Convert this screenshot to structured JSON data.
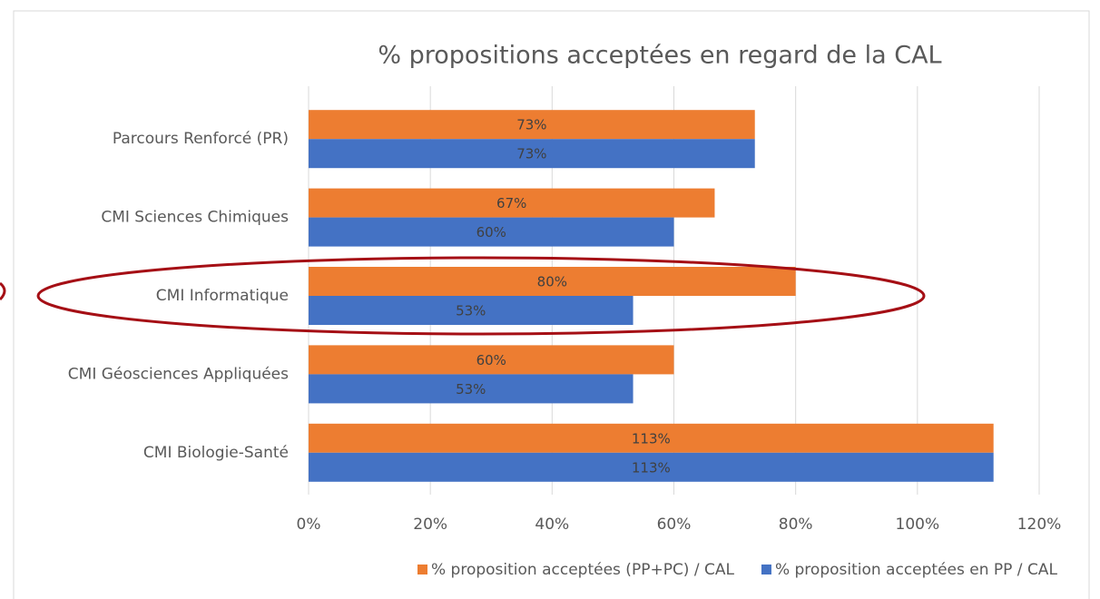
{
  "chart_data": {
    "type": "hbar",
    "title": "% propositions acceptées en regard de la CAL",
    "categories": [
      "Parcours Renforcé (PR)",
      "CMI Sciences Chimiques",
      "CMI Informatique",
      "CMI Géosciences Appliquées",
      "CMI Biologie-Santé"
    ],
    "series": [
      {
        "name": "% proposition acceptées (PP+PC) / CAL",
        "color": "#ed7d31",
        "values": [
          73.3,
          66.7,
          80,
          60,
          112.5
        ],
        "value_labels": [
          "73%",
          "67%",
          "80%",
          "60%",
          "113%"
        ]
      },
      {
        "name": "% proposition acceptées en PP / CAL",
        "color": "#4472c4",
        "values": [
          73.3,
          60,
          53.3,
          53.3,
          112.5
        ],
        "value_labels": [
          "73%",
          "60%",
          "53%",
          "53%",
          "113%"
        ]
      }
    ],
    "xlim": [
      0,
      120
    ],
    "xticks": [
      {
        "value": 0,
        "label": "0%"
      },
      {
        "value": 20,
        "label": "20%"
      },
      {
        "value": 40,
        "label": "40%"
      },
      {
        "value": 60,
        "label": "60%"
      },
      {
        "value": 80,
        "label": "80%"
      },
      {
        "value": 100,
        "label": "100%"
      },
      {
        "value": 120,
        "label": "120%"
      }
    ],
    "grid": true,
    "legend": "bottom"
  }
}
